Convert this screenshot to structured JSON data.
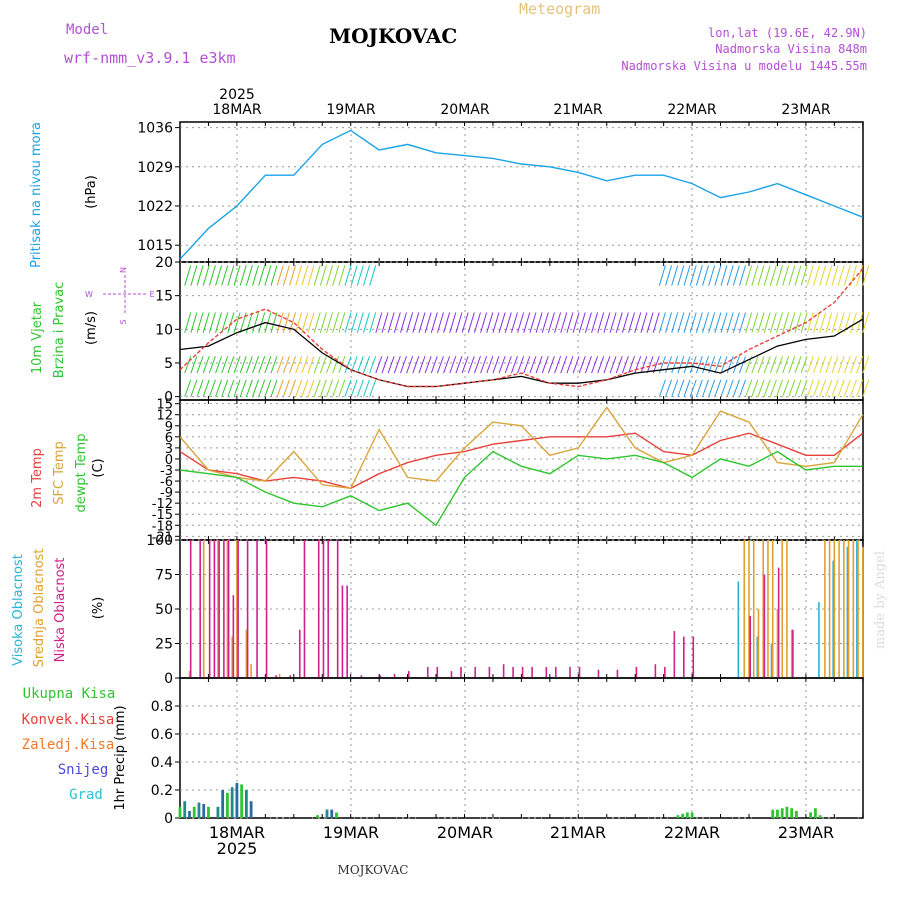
{
  "header": {
    "model_label": "Model",
    "model_name": "wrf-nmm_v3.9.1 e3km",
    "title": "MOJKOVAC",
    "subtitle": "Meteogram",
    "coords": "lon,lat (19.6E, 42.9N)",
    "elevation": "Nadmorska Visina 848m",
    "model_elevation": "Nadmorska Visina u modelu 1445.55m",
    "watermark": "made by Angel",
    "footer": "MOJKOVAC"
  },
  "colors": {
    "pressure": "#1aa3e6",
    "model": "#b44fd6",
    "meteogram": "#e6c37a",
    "temp2m": "#e8413a",
    "sfc": "#d9a43a",
    "dewpt": "#2ec62e",
    "high_cloud": "#28b4d6",
    "mid_cloud": "#e0a030",
    "low_cloud": "#d0208a",
    "wind_speed": "#000000",
    "gust": "#e8413a",
    "total_precip": "#2ec62e",
    "conv_precip": "#e8413a",
    "frz_precip": "#f07a2a",
    "snow": "#4a4ae0",
    "hail": "#28c4d6"
  },
  "chart_data": [
    {
      "type": "line",
      "title": "Pritisak na nivou mora",
      "ylabel": "(hPa)",
      "ylim": [
        1012,
        1037
      ],
      "yticks": [
        1015,
        1022,
        1029,
        1036
      ],
      "x_hours": [
        0,
        6,
        12,
        18,
        24,
        30,
        36,
        42,
        48,
        54,
        60,
        66,
        72,
        78,
        84,
        90,
        96,
        102,
        108,
        114,
        120,
        126,
        132,
        138,
        144
      ],
      "series": [
        {
          "name": "Pritisak na nivou mora",
          "values": [
            1012.5,
            1018,
            1022,
            1027.5,
            1027.5,
            1033,
            1035.5,
            1032,
            1033,
            1031.5,
            1031,
            1030.5,
            1029.5,
            1029,
            1028,
            1026.5,
            1027.5,
            1027.5,
            1026,
            1023.5,
            1024.5,
            1026,
            1024,
            1022,
            1020
          ]
        }
      ]
    },
    {
      "type": "line",
      "title": "10m Vjetar Brzina i Pravac",
      "ylabel": "(m/s)",
      "ylim": [
        -0.5,
        20
      ],
      "yticks": [
        0,
        5,
        10,
        15,
        20
      ],
      "compass": [
        "N",
        "W",
        "E",
        "S"
      ],
      "x_hours": [
        0,
        6,
        12,
        18,
        24,
        30,
        36,
        42,
        48,
        54,
        60,
        66,
        72,
        78,
        84,
        90,
        96,
        102,
        108,
        114,
        120,
        126,
        132,
        138,
        144
      ],
      "series": [
        {
          "name": "Brzina vjetra",
          "values": [
            7,
            7.5,
            9.5,
            11,
            10,
            6.5,
            4,
            2.5,
            1.5,
            1.5,
            2,
            2.5,
            3,
            2,
            2,
            2.5,
            3.5,
            4,
            4.5,
            3.5,
            5.5,
            7.5,
            8.5,
            9,
            11.5
          ]
        },
        {
          "name": "Udari vjetra",
          "values": [
            4,
            8,
            11.5,
            13,
            11,
            7,
            4,
            2.5,
            1.5,
            1.5,
            2,
            2.5,
            3.5,
            2,
            1.5,
            2.5,
            4,
            5,
            5,
            4.5,
            7,
            9,
            11,
            14,
            19
          ]
        }
      ]
    },
    {
      "type": "line",
      "ylabel": "(C)",
      "legend": [
        "2m Temp",
        "SFC Temp",
        "dewpt Temp"
      ],
      "ylim": [
        -22,
        16
      ],
      "yticks": [
        15,
        12,
        9,
        6,
        3,
        0,
        -3,
        -6,
        -9,
        -12,
        -15,
        -18,
        -21
      ],
      "x_hours": [
        0,
        6,
        12,
        18,
        24,
        30,
        36,
        42,
        48,
        54,
        60,
        66,
        72,
        78,
        84,
        90,
        96,
        102,
        108,
        114,
        120,
        126,
        132,
        138,
        144
      ],
      "series": [
        {
          "name": "2m Temp",
          "values": [
            2,
            -3,
            -4,
            -6,
            -5,
            -6,
            -8,
            -4,
            -1,
            1,
            2,
            4,
            5,
            6,
            6,
            6,
            7,
            2,
            1,
            5,
            7,
            4,
            1,
            1,
            7
          ]
        },
        {
          "name": "SFC Temp",
          "values": [
            6,
            -3,
            -5,
            -6,
            2,
            -7,
            -8,
            8,
            -5,
            -6,
            3,
            10,
            9,
            1,
            3,
            14,
            3,
            -1,
            1,
            13,
            10,
            -1,
            -2,
            -1,
            12
          ]
        },
        {
          "name": "dewpt Temp",
          "values": [
            -3,
            -4,
            -5,
            -9,
            -12,
            -13,
            -10,
            -14,
            -12,
            -18,
            -5,
            2,
            -2,
            -4,
            1,
            0,
            1,
            -1,
            -5,
            0,
            -2,
            2,
            -3,
            -2,
            -2
          ]
        }
      ]
    },
    {
      "type": "bar",
      "ylabel": "(%)",
      "legend": [
        "Visoka Oblacnost",
        "Srednja Oblacnost",
        "Niska Oblacnost"
      ],
      "ylim": [
        0,
        100
      ],
      "yticks": [
        0,
        25,
        50,
        75,
        100
      ],
      "series": [
        {
          "name": "Visoka Oblacnost",
          "bars": [
            [
              118,
              70
            ],
            [
              122,
              30
            ],
            [
              125,
              25
            ],
            [
              135,
              55
            ],
            [
              138,
              85
            ],
            [
              141,
              95
            ],
            [
              143,
              100
            ]
          ]
        },
        {
          "name": "Srednja Oblacnost",
          "bars": [
            [
              2,
              5
            ],
            [
              5,
              100
            ],
            [
              8,
              100
            ],
            [
              10,
              100
            ],
            [
              11,
              30
            ],
            [
              12,
              100
            ],
            [
              14,
              35
            ],
            [
              15,
              10
            ],
            [
              21,
              3
            ],
            [
              119,
              100
            ],
            [
              120,
              100
            ],
            [
              121,
              100
            ],
            [
              122,
              50
            ],
            [
              123,
              100
            ],
            [
              124,
              100
            ],
            [
              125,
              100
            ],
            [
              126,
              50
            ],
            [
              127,
              100
            ],
            [
              128,
              100
            ],
            [
              129,
              35
            ],
            [
              136,
              100
            ],
            [
              137,
              100
            ],
            [
              138,
              100
            ],
            [
              139,
              100
            ],
            [
              140,
              100
            ],
            [
              141,
              100
            ],
            [
              142,
              100
            ],
            [
              143,
              100
            ],
            [
              144,
              95
            ]
          ]
        },
        {
          "name": "Niska Oblacnost",
          "bars": [
            [
              2,
              100
            ],
            [
              4,
              100
            ],
            [
              6,
              100
            ],
            [
              7,
              100
            ],
            [
              8,
              100
            ],
            [
              9,
              100
            ],
            [
              10,
              100
            ],
            [
              11,
              60
            ],
            [
              12,
              100
            ],
            [
              14,
              100
            ],
            [
              16,
              100
            ],
            [
              18,
              100
            ],
            [
              20,
              2
            ],
            [
              23,
              2
            ],
            [
              25,
              35
            ],
            [
              26,
              100
            ],
            [
              29,
              100
            ],
            [
              30,
              100
            ],
            [
              31,
              100
            ],
            [
              33,
              100
            ],
            [
              34,
              67
            ],
            [
              35,
              67
            ],
            [
              38,
              2
            ],
            [
              42,
              2
            ],
            [
              45,
              3
            ],
            [
              48,
              5
            ],
            [
              52,
              8
            ],
            [
              54,
              8
            ],
            [
              57,
              5
            ],
            [
              59,
              8
            ],
            [
              62,
              8
            ],
            [
              65,
              8
            ],
            [
              68,
              10
            ],
            [
              70,
              8
            ],
            [
              72,
              8
            ],
            [
              74,
              8
            ],
            [
              77,
              8
            ],
            [
              79,
              8
            ],
            [
              82,
              8
            ],
            [
              84,
              8
            ],
            [
              88,
              6
            ],
            [
              92,
              6
            ],
            [
              96,
              8
            ],
            [
              100,
              10
            ],
            [
              102,
              8
            ],
            [
              104,
              34
            ],
            [
              106,
              30
            ],
            [
              108,
              30
            ],
            [
              120,
              45
            ],
            [
              123,
              75
            ],
            [
              126,
              80
            ],
            [
              129,
              35
            ]
          ]
        }
      ]
    },
    {
      "type": "bar",
      "ylabel": "1hr Precip (mm)",
      "legend": [
        "Ukupna Kisa",
        "Konvek.Kisa",
        "Zaledj.Kisa",
        "Snijeg",
        "Grad"
      ],
      "ylim": [
        0,
        1.0
      ],
      "yticks": [
        0,
        0.2,
        0.4,
        0.6,
        0.8
      ],
      "series": [
        {
          "name": "Snijeg / Grad",
          "bars": [
            [
              0,
              0.08
            ],
            [
              1,
              0.12
            ],
            [
              2,
              0.05
            ],
            [
              3,
              0.08
            ],
            [
              4,
              0.11
            ],
            [
              5,
              0.1
            ],
            [
              6,
              0.08
            ],
            [
              8,
              0.08
            ],
            [
              9,
              0.2
            ],
            [
              10,
              0.18
            ],
            [
              11,
              0.22
            ],
            [
              12,
              0.25
            ],
            [
              13,
              0.24
            ],
            [
              14,
              0.2
            ],
            [
              15,
              0.12
            ],
            [
              29,
              0.02
            ],
            [
              31,
              0.06
            ],
            [
              32,
              0.06
            ],
            [
              33,
              0.04
            ]
          ]
        },
        {
          "name": "Ukupna Kisa",
          "bars": [
            [
              105,
              0.02
            ],
            [
              106,
              0.03
            ],
            [
              107,
              0.04
            ],
            [
              108,
              0.04
            ],
            [
              125,
              0.06
            ],
            [
              126,
              0.06
            ],
            [
              127,
              0.07
            ],
            [
              128,
              0.08
            ],
            [
              129,
              0.07
            ],
            [
              130,
              0.05
            ],
            [
              133,
              0.04
            ],
            [
              134,
              0.07
            ],
            [
              135,
              0.02
            ]
          ]
        }
      ]
    }
  ],
  "axis": {
    "top_year": "2025",
    "bottom_year": "2025",
    "days": [
      "18MAR",
      "19MAR",
      "20MAR",
      "21MAR",
      "22MAR",
      "23MAR"
    ]
  },
  "left_labels": {
    "pressure": "Pritisak na nivou mora",
    "pressure_unit": "(hPa)",
    "wind1": "10m Vjetar",
    "wind2": "Brzina i Pravac",
    "wind_unit": "(m/s)",
    "temp_2m": "2m Temp",
    "temp_sfc": "SFC Temp",
    "temp_dew": "dewpt Temp",
    "temp_unit": "(C)",
    "cloud_high": "Visoka Oblacnost",
    "cloud_mid": "Srednja Oblacnost",
    "cloud_low": "Niska Oblacnost",
    "cloud_unit": "(%)",
    "precip_total": "Ukupna Kisa",
    "precip_conv": "Konvek.Kisa",
    "precip_frz": "Zaledj.Kisa",
    "precip_snow": "Snijeg",
    "precip_hail": "Grad",
    "precip_unit": "1hr Precip (mm)"
  }
}
